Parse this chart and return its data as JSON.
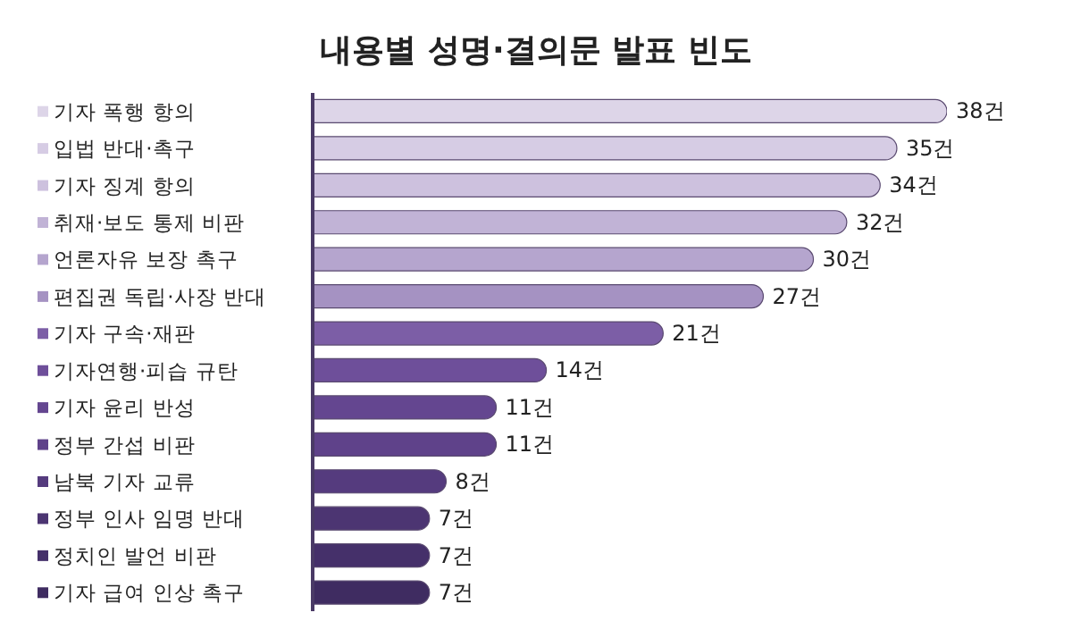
{
  "chart_data": {
    "type": "bar",
    "orientation": "horizontal",
    "title": "내용별 성명·결의문 발표 빈도",
    "categories": [
      "기자 폭행 항의",
      "입법 반대·촉구",
      "기자 징계 항의",
      "취재·보도 통제 비판",
      "언론자유 보장 촉구",
      "편집권 독립·사장 반대",
      "기자 구속·재판",
      "기자연행·피습 규탄",
      "기자 윤리 반성",
      "정부 간섭 비판",
      "남북 기자 교류",
      "정부 인사 임명 반대",
      "정치인 발언 비판",
      "기자 급여 인상 촉구"
    ],
    "values": [
      38,
      35,
      34,
      32,
      30,
      27,
      21,
      14,
      11,
      11,
      8,
      7,
      7,
      7
    ],
    "value_labels": [
      "38건",
      "35건",
      "34건",
      "32건",
      "30건",
      "27건",
      "21건",
      "14건",
      "11건",
      "11건",
      "8건",
      "7건",
      "7건",
      "7건"
    ],
    "colors": [
      "#ddd5e8",
      "#d6cce4",
      "#cdc1de",
      "#c1b3d6",
      "#b5a5ce",
      "#a592c2",
      "#7c5ea6",
      "#6e4f9a",
      "#644690",
      "#5f428a",
      "#553b7e",
      "#4c3572",
      "#45306a",
      "#3f2c61"
    ]
  }
}
